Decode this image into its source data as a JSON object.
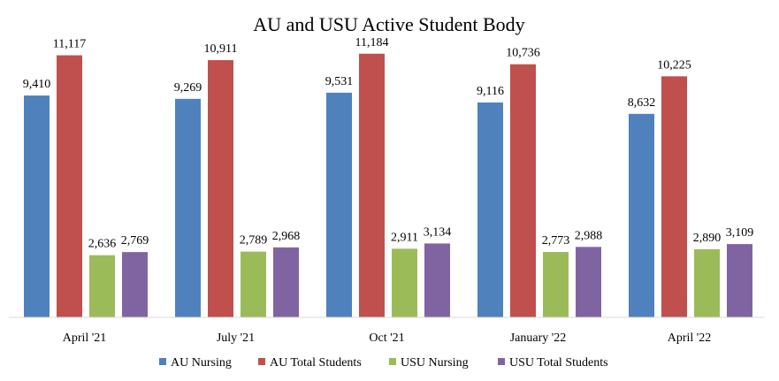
{
  "chart_data": {
    "type": "bar",
    "title": "AU and USU Active Student Body",
    "xlabel": "",
    "ylabel": "",
    "categories": [
      "April '21",
      "July '21",
      "Oct '21",
      "January '22",
      "April '22"
    ],
    "series": [
      {
        "name": "AU Nursing",
        "color": "#4F81BD",
        "values": [
          9410,
          9269,
          9531,
          9116,
          8632
        ],
        "labels": [
          "9,410",
          "9,269",
          "9,531",
          "9,116",
          "8,632"
        ]
      },
      {
        "name": "AU Total Students",
        "color": "#C0504D",
        "values": [
          11117,
          10911,
          11184,
          10736,
          10225
        ],
        "labels": [
          "11,117",
          "10,911",
          "11,184",
          "10,736",
          "10,225"
        ]
      },
      {
        "name": "USU Nursing",
        "color": "#9BBB59",
        "values": [
          2636,
          2789,
          2911,
          2773,
          2890
        ],
        "labels": [
          "2,636",
          "2,789",
          "2,911",
          "2,773",
          "2,890"
        ]
      },
      {
        "name": "USU Total Students",
        "color": "#8064A2",
        "values": [
          2769,
          2968,
          3134,
          2988,
          3109
        ],
        "labels": [
          "2,769",
          "2,968",
          "3,134",
          "2,988",
          "3,109"
        ]
      }
    ],
    "ylim": [
      0,
      12000
    ],
    "grid": false,
    "legend_position": "bottom",
    "data_labels": true
  }
}
